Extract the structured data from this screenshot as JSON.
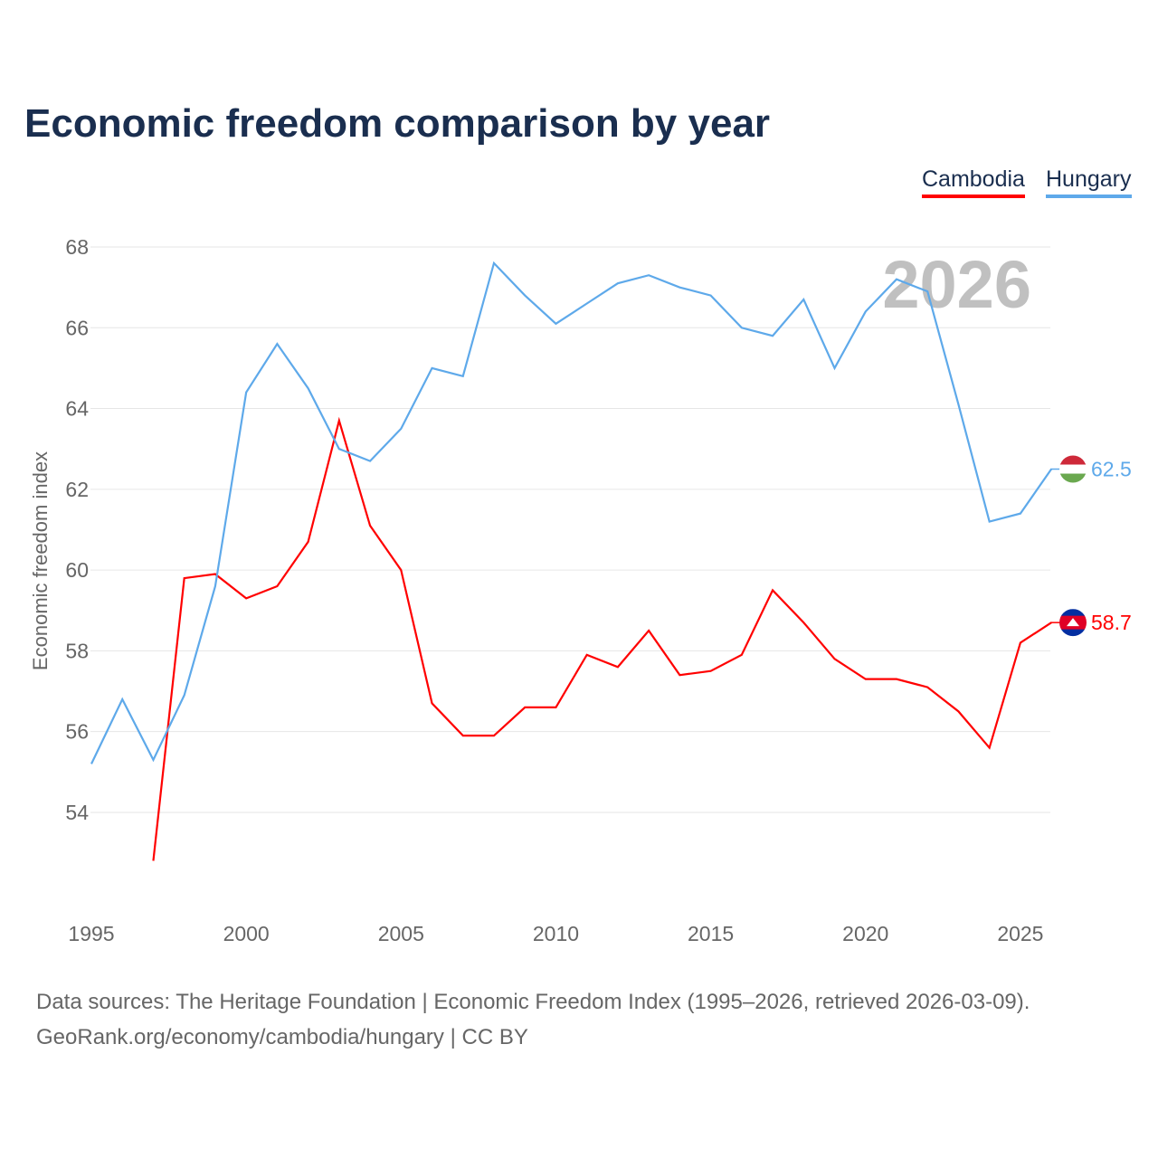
{
  "chart_data": {
    "type": "line",
    "title": "Economic freedom comparison by year",
    "ylabel": "Economic freedom index",
    "xlabel": "",
    "ylim": [
      52,
      68
    ],
    "xlim": [
      1995,
      2026
    ],
    "yticks": [
      54,
      56,
      58,
      60,
      62,
      64,
      66,
      68
    ],
    "xticks": [
      1995,
      2000,
      2005,
      2010,
      2015,
      2020,
      2025
    ],
    "year_label": "2026",
    "legend_position": "top-right",
    "series": [
      {
        "name": "Cambodia",
        "color": "#ff0000",
        "end_label": "58.7",
        "x": [
          1997,
          1998,
          1999,
          2000,
          2001,
          2002,
          2003,
          2004,
          2005,
          2006,
          2007,
          2008,
          2009,
          2010,
          2011,
          2012,
          2013,
          2014,
          2015,
          2016,
          2017,
          2018,
          2019,
          2020,
          2021,
          2022,
          2023,
          2024,
          2025,
          2026
        ],
        "values": [
          52.8,
          59.8,
          59.9,
          59.3,
          59.6,
          60.7,
          63.7,
          61.1,
          60.0,
          56.7,
          55.9,
          55.9,
          56.6,
          56.6,
          57.9,
          57.6,
          58.5,
          57.4,
          57.5,
          57.9,
          59.5,
          58.7,
          57.8,
          57.3,
          57.3,
          57.1,
          56.5,
          55.6,
          58.2,
          58.7
        ]
      },
      {
        "name": "Hungary",
        "color": "#5ea9ea",
        "end_label": "62.5",
        "x": [
          1995,
          1996,
          1997,
          1998,
          1999,
          2000,
          2001,
          2002,
          2003,
          2004,
          2005,
          2006,
          2007,
          2008,
          2009,
          2010,
          2011,
          2012,
          2013,
          2014,
          2015,
          2016,
          2017,
          2018,
          2019,
          2020,
          2021,
          2022,
          2023,
          2024,
          2025,
          2026
        ],
        "values": [
          55.2,
          56.8,
          55.3,
          56.9,
          59.6,
          64.4,
          65.6,
          64.5,
          63.0,
          62.7,
          63.5,
          65.0,
          64.8,
          67.6,
          66.8,
          66.1,
          66.6,
          67.1,
          67.3,
          67.0,
          66.8,
          66.0,
          65.8,
          66.7,
          65.0,
          66.4,
          67.2,
          66.9,
          64.1,
          61.2,
          61.4,
          62.5
        ]
      }
    ]
  },
  "source_line1": "Data sources: The Heritage Foundation | Economic Freedom Index (1995–2026, retrieved 2026-03-09).",
  "source_line2": "GeoRank.org/economy/cambodia/hungary | CC BY"
}
